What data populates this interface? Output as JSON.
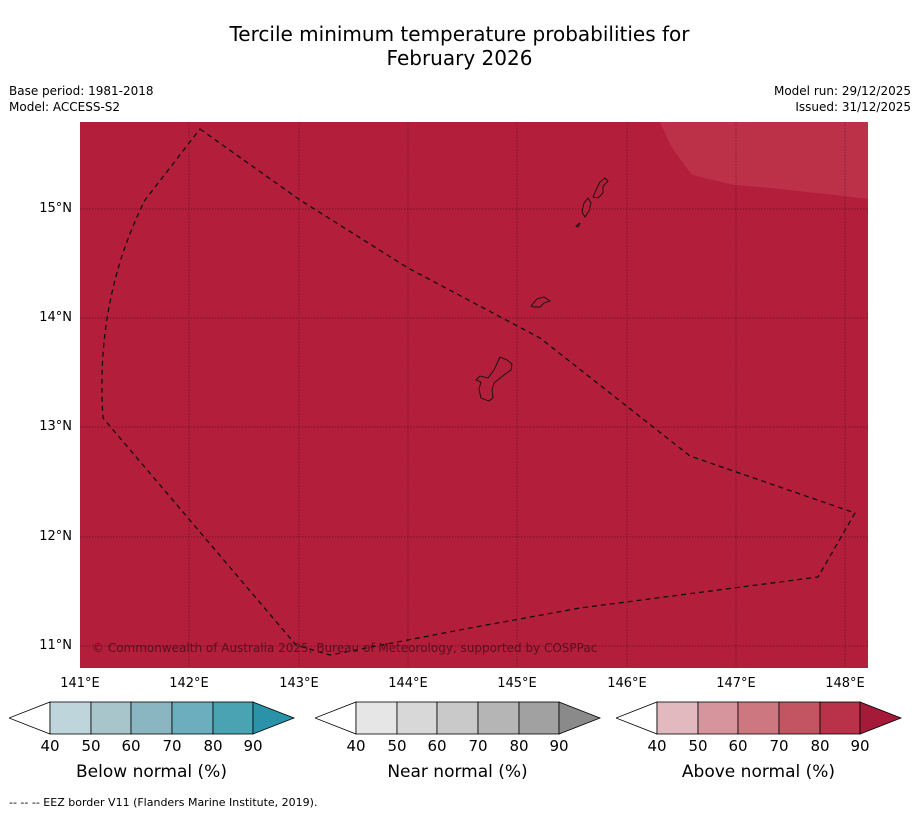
{
  "title": {
    "line1": "Tercile minimum temperature probabilities for",
    "line2": "February 2026"
  },
  "meta": {
    "base_period": "Base period: 1981-2018",
    "model": "Model: ACCESS-S2",
    "model_run": "Model run: 29/12/2025",
    "issued": "Issued: 31/12/2025"
  },
  "map": {
    "lat_labels": [
      "15°N",
      "14°N",
      "13°N",
      "12°N",
      "11°N"
    ],
    "lon_labels": [
      "141°E",
      "142°E",
      "143°E",
      "144°E",
      "145°E",
      "146°E",
      "147°E",
      "148°E"
    ],
    "copyright": "© Commonwealth of Australia 2025, Bureau of Meteorology, supported by COSPPac",
    "fill_color": "#b31e3a",
    "highlight_color": "#bd3148"
  },
  "colorbars": [
    {
      "label": "Below normal (%)",
      "ticks": [
        "40",
        "50",
        "60",
        "70",
        "80",
        "90"
      ],
      "colors": [
        "#ffffff",
        "#bed5dc",
        "#a8c5cb",
        "#8ab6c1",
        "#6cadbe",
        "#4aa3b3",
        "#2b93a9"
      ]
    },
    {
      "label": "Near normal (%)",
      "ticks": [
        "40",
        "50",
        "60",
        "70",
        "80",
        "90"
      ],
      "colors": [
        "#ffffff",
        "#e6e6e6",
        "#d8d8d8",
        "#c9c9c9",
        "#b5b5b5",
        "#a1a1a1",
        "#8a8a8a"
      ]
    },
    {
      "label": "Above normal (%)",
      "ticks": [
        "40",
        "50",
        "60",
        "70",
        "80",
        "90"
      ],
      "colors": [
        "#ffffff",
        "#e2b9bf",
        "#d6959c",
        "#cd7880",
        "#c35563",
        "#b9324a",
        "#a41a38"
      ]
    }
  ],
  "footer": "--  --  -- EEZ border V11 (Flanders Marine Institute, 2019)."
}
